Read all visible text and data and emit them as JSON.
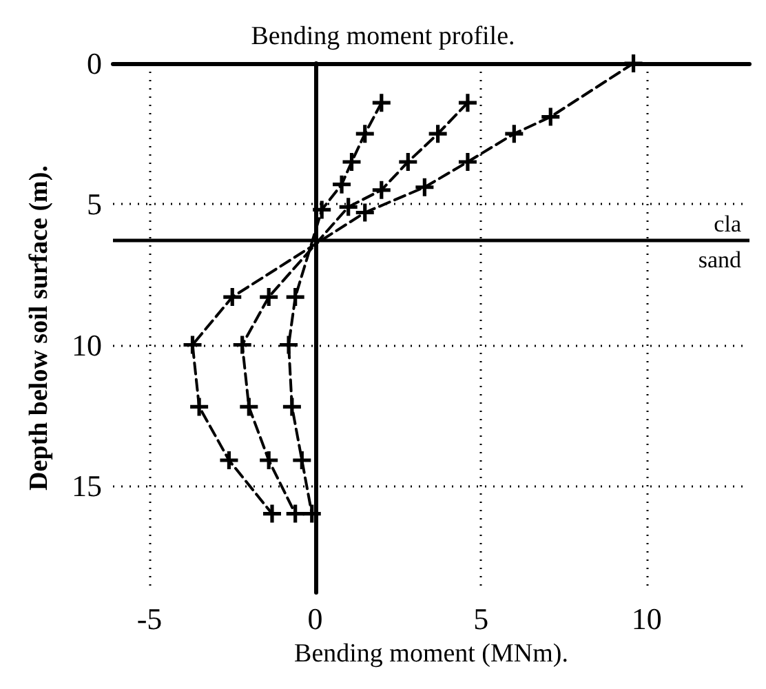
{
  "chart_data": {
    "type": "line",
    "title": "Bending moment profile.",
    "xlabel": "Bending moment (MNm).",
    "ylabel": "Depth below soil surface (m).",
    "xlim": [
      -6.1,
      13.1
    ],
    "xticks": [
      -5,
      0,
      5,
      10
    ],
    "ylim": [
      18.8,
      0
    ],
    "yticks": [
      0,
      5,
      10,
      15
    ],
    "grid": true,
    "marker": "cross",
    "line_style": "dashed",
    "series": [
      {
        "color": "#000000",
        "x": [
          2.0,
          1.5,
          1.1,
          0.8,
          0.2,
          -0.6,
          -0.8,
          -0.7,
          -0.4,
          -0.1
        ],
        "values": [
          1.4,
          2.5,
          3.5,
          4.3,
          5.2,
          8.3,
          10.0,
          12.2,
          14.1,
          16.0
        ]
      },
      {
        "color": "#000000",
        "x": [
          4.6,
          3.7,
          2.8,
          2.0,
          1.0,
          -1.4,
          -2.2,
          -2.0,
          -1.4,
          -0.6
        ],
        "values": [
          1.4,
          2.5,
          3.5,
          4.5,
          5.1,
          8.3,
          10.0,
          12.2,
          14.1,
          16.0
        ]
      },
      {
        "color": "#000000",
        "x": [
          9.6,
          7.1,
          6.0,
          4.6,
          3.3,
          1.5,
          -2.5,
          -3.7,
          -3.5,
          -2.6,
          -1.3
        ],
        "values": [
          0,
          1.9,
          2.5,
          3.5,
          4.4,
          5.3,
          8.3,
          10.0,
          12.2,
          14.1,
          16.0
        ]
      }
    ],
    "ref_lines": [
      {
        "axis": "x",
        "value": 0,
        "line_style": "solid",
        "color": "#000000"
      },
      {
        "axis": "y",
        "value": 6.3,
        "line_style": "solid",
        "color": "#000000"
      }
    ],
    "annotations": [
      "cla",
      "sand"
    ]
  }
}
